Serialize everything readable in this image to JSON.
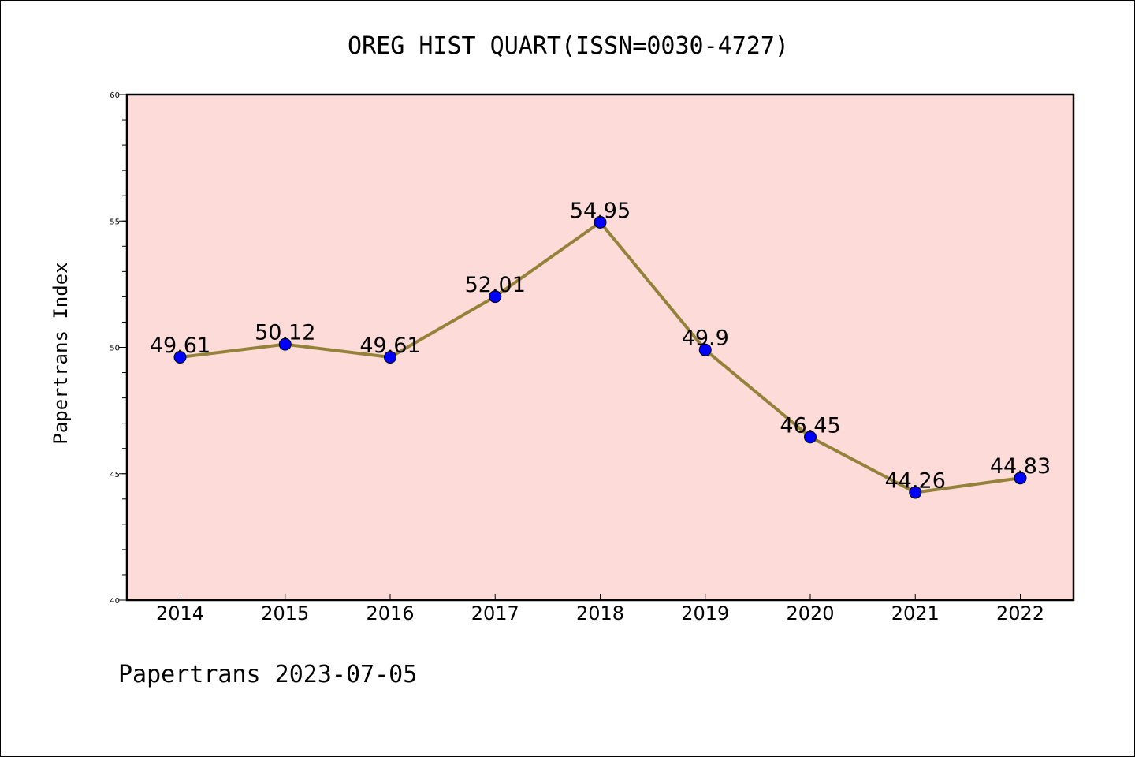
{
  "chart_data": {
    "type": "line",
    "title": "OREG HIST QUART(ISSN=0030-4727)",
    "xlabel": "",
    "ylabel": "Papertrans Index",
    "categories": [
      "2014",
      "2015",
      "2016",
      "2017",
      "2018",
      "2019",
      "2020",
      "2021",
      "2022"
    ],
    "series": [
      {
        "values": [
          49.61,
          50.12,
          49.61,
          52.01,
          54.95,
          49.9,
          46.45,
          44.26,
          44.83
        ],
        "labels": [
          "49.61",
          "50.12",
          "49.61",
          "52.01",
          "54.95",
          "49.9",
          "46.45",
          "44.26",
          "44.83"
        ]
      }
    ],
    "ylim": [
      40,
      60
    ],
    "yticks": [
      "40",
      "45",
      "50",
      "55",
      "60"
    ],
    "grid": false,
    "colors": {
      "line": "#94823a",
      "marker": "#0000ff",
      "plot_background": "#fddbd8"
    }
  },
  "footer": "Papertrans 2023-07-05"
}
